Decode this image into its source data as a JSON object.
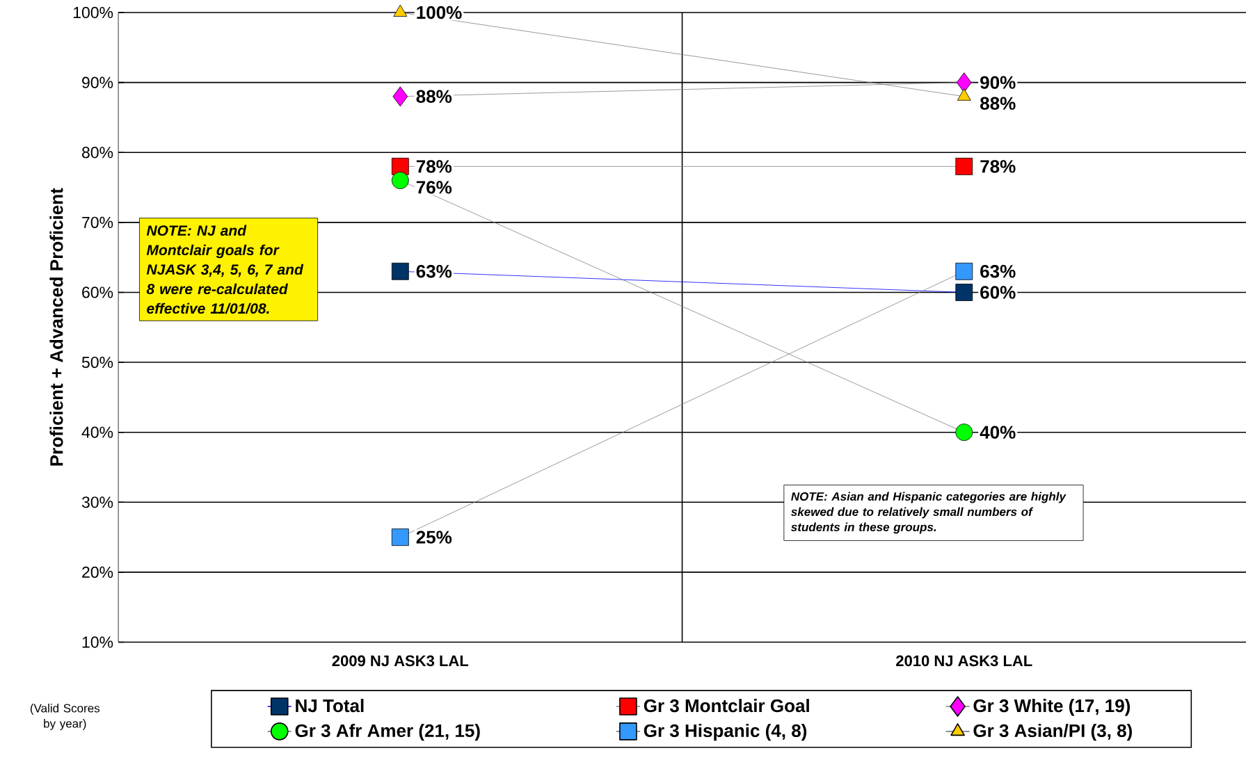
{
  "chart_data": {
    "type": "line",
    "ylabel": "Proficient + Advanced Proficient",
    "categories": [
      "2009 NJ ASK3  LAL",
      "2010 NJ ASK3  LAL"
    ],
    "ylim": [
      10,
      100
    ],
    "yticks": [
      {
        "value": 10,
        "label": "10%"
      },
      {
        "value": 20,
        "label": "20%"
      },
      {
        "value": 30,
        "label": "30%"
      },
      {
        "value": 40,
        "label": "40%"
      },
      {
        "value": 50,
        "label": "50%"
      },
      {
        "value": 60,
        "label": "60%"
      },
      {
        "value": 70,
        "label": "70%"
      },
      {
        "value": 80,
        "label": "80%"
      },
      {
        "value": 90,
        "label": "90%"
      },
      {
        "value": 100,
        "label": "100%"
      }
    ],
    "grid": true,
    "legend": "bottom",
    "series": [
      {
        "name": "NJ Total",
        "color": "#003366",
        "marker": "square",
        "values": [
          63,
          60
        ],
        "value_labels": [
          "63%",
          "60%"
        ]
      },
      {
        "name": "Gr 3 Montclair Goal",
        "color": "#ff0000",
        "marker": "square",
        "values": [
          78,
          78
        ],
        "value_labels": [
          "78%",
          "78%"
        ]
      },
      {
        "name": "Gr 3 White (17, 19)",
        "color": "#ff00ff",
        "marker": "diamond",
        "values": [
          88,
          90
        ],
        "value_labels": [
          "88%",
          "90%"
        ]
      },
      {
        "name": "Gr 3 Afr Amer (21, 15)",
        "color": "#00ff00",
        "marker": "circle",
        "values": [
          76,
          40
        ],
        "value_labels": [
          "76%",
          "40%"
        ]
      },
      {
        "name": "Gr 3 Hispanic (4, 8)",
        "color": "#3399ff",
        "marker": "square",
        "values": [
          25,
          63
        ],
        "value_labels": [
          "25%",
          "63%"
        ]
      },
      {
        "name": "Gr 3 Asian/PI (3, 8)",
        "color": "#ffcc00",
        "marker": "triangle",
        "values": [
          100,
          88
        ],
        "value_labels": [
          "100%",
          "88%"
        ]
      }
    ],
    "annotations": [
      "NOTE: NJ and Montclair goals for NJASK 3,4, 5, 6, 7 and 8 were re-calculated effective 11/01/08.",
      "NOTE: Asian and Hispanic categories are highly skewed due to relatively small numbers of students in these groups.",
      "(Valid Scores by year)"
    ]
  }
}
